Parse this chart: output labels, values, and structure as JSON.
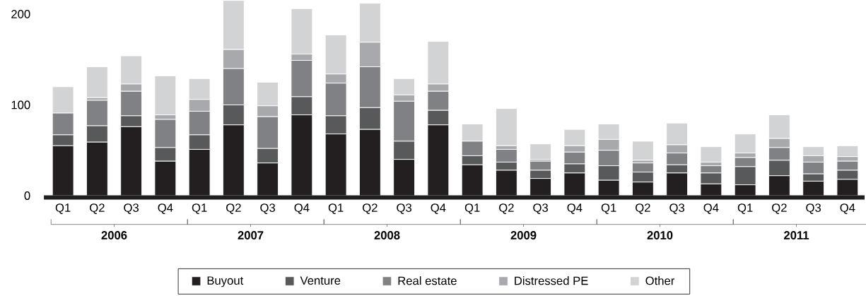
{
  "chart_data": {
    "type": "bar",
    "stacked": true,
    "categories": [
      "Q1",
      "Q2",
      "Q3",
      "Q4",
      "Q1",
      "Q2",
      "Q3",
      "Q4",
      "Q1",
      "Q2",
      "Q3",
      "Q4",
      "Q1",
      "Q2",
      "Q3",
      "Q4",
      "Q1",
      "Q2",
      "Q3",
      "Q4",
      "Q1",
      "Q2",
      "Q3",
      "Q4"
    ],
    "series": [
      {
        "name": "Buyout",
        "color": "#231f20",
        "values": [
          55,
          59,
          76,
          38,
          51,
          78,
          36,
          89,
          68,
          73,
          40,
          78,
          34,
          28,
          19,
          25,
          17,
          15,
          25,
          13,
          12,
          22,
          16,
          18
        ]
      },
      {
        "name": "Venture",
        "color": "#58595b",
        "values": [
          12,
          18,
          12,
          15,
          16,
          22,
          16,
          20,
          20,
          24,
          20,
          16,
          10,
          9,
          9,
          10,
          16,
          11,
          9,
          12,
          20,
          17,
          8,
          10
        ]
      },
      {
        "name": "Real estate",
        "color": "#808184",
        "values": [
          24,
          28,
          27,
          31,
          26,
          40,
          35,
          40,
          36,
          45,
          44,
          21,
          16,
          14,
          10,
          13,
          17,
          10,
          13,
          8,
          10,
          14,
          13,
          10
        ]
      },
      {
        "name": "Distressed PE",
        "color": "#a7a9ac",
        "values": [
          0,
          3,
          8,
          5,
          13,
          21,
          12,
          7,
          10,
          27,
          7,
          8,
          0,
          4,
          2,
          7,
          12,
          3,
          9,
          4,
          5,
          10,
          7,
          5
        ]
      },
      {
        "name": "Other",
        "color": "#d1d3d4",
        "values": [
          29,
          34,
          31,
          43,
          23,
          54,
          26,
          50,
          43,
          43,
          18,
          47,
          19,
          41,
          17,
          18,
          17,
          21,
          24,
          17,
          21,
          26,
          10,
          12
        ]
      }
    ],
    "annotations": [
      "2006",
      "2007",
      "2008",
      "2009",
      "2010",
      "2011"
    ],
    "ylim": [
      0,
      215
    ],
    "yticks": [
      0,
      100,
      200
    ],
    "grid": false,
    "legend": "bottom"
  }
}
